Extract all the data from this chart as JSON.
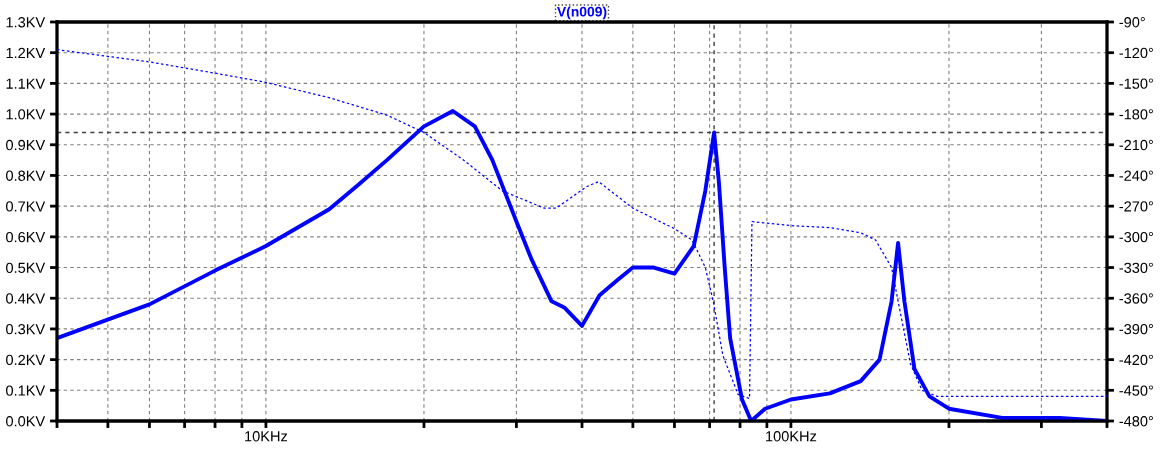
{
  "chart_data": {
    "type": "line",
    "title": "V(n009)",
    "log": "x",
    "grid": true,
    "xlim": [
      4,
      400
    ],
    "xticks": [
      {
        "value": 4,
        "label": null
      },
      {
        "value": 5,
        "label": null
      },
      {
        "value": 6,
        "label": null
      },
      {
        "value": 7,
        "label": null
      },
      {
        "value": 8,
        "label": null
      },
      {
        "value": 9,
        "label": null
      },
      {
        "value": 10,
        "label": "10KHz"
      },
      {
        "value": 20,
        "label": null
      },
      {
        "value": 30,
        "label": null
      },
      {
        "value": 40,
        "label": null
      },
      {
        "value": 50,
        "label": null
      },
      {
        "value": 60,
        "label": null
      },
      {
        "value": 70,
        "label": null
      },
      {
        "value": 80,
        "label": null
      },
      {
        "value": 90,
        "label": null
      },
      {
        "value": 100,
        "label": "100KHz"
      },
      {
        "value": 200,
        "label": null
      },
      {
        "value": 300,
        "label": null
      },
      {
        "value": 400,
        "label": null
      }
    ],
    "ylim": [
      0,
      1.3
    ],
    "yticks": [
      {
        "value": 0,
        "label": "0.0KV"
      },
      {
        "value": 0.1,
        "label": "0.1KV"
      },
      {
        "value": 0.2,
        "label": "0.2KV"
      },
      {
        "value": 0.3,
        "label": "0.3KV"
      },
      {
        "value": 0.4,
        "label": "0.4KV"
      },
      {
        "value": 0.5,
        "label": "0.5KV"
      },
      {
        "value": 0.6,
        "label": "0.6KV"
      },
      {
        "value": 0.7,
        "label": "0.7KV"
      },
      {
        "value": 0.8,
        "label": "0.8KV"
      },
      {
        "value": 0.9,
        "label": "0.9KV"
      },
      {
        "value": 1.0,
        "label": "1.0KV"
      },
      {
        "value": 1.1,
        "label": "1.1KV"
      },
      {
        "value": 1.2,
        "label": "1.2KV"
      },
      {
        "value": 1.3,
        "label": "1.3KV"
      }
    ],
    "y2lim": [
      -480,
      -90
    ],
    "y2ticks": [
      {
        "value": -90,
        "label": "-90°"
      },
      {
        "value": -120,
        "label": "-120°"
      },
      {
        "value": -150,
        "label": "-150°"
      },
      {
        "value": -180,
        "label": "-180°"
      },
      {
        "value": -210,
        "label": "-210°"
      },
      {
        "value": -240,
        "label": "-240°"
      },
      {
        "value": -270,
        "label": "-270°"
      },
      {
        "value": -300,
        "label": "-300°"
      },
      {
        "value": -330,
        "label": "-330°"
      },
      {
        "value": -360,
        "label": "-360°"
      },
      {
        "value": -390,
        "label": "-390°"
      },
      {
        "value": -420,
        "label": "-420°"
      },
      {
        "value": -450,
        "label": "-450°"
      },
      {
        "value": -480,
        "label": "-480°"
      }
    ],
    "ref_lines": [
      {
        "axis": "y",
        "value": 0.94,
        "color": "#404040",
        "line_style": "dashed"
      },
      {
        "axis": "x",
        "value": 71.4,
        "color": "#404040",
        "line_style": "dashed"
      }
    ],
    "series": [
      {
        "color": "#0000ff",
        "line_style": "solid",
        "x": [
          4,
          6,
          8,
          10,
          13.2,
          15,
          17,
          20,
          22.7,
          25,
          27,
          30,
          32,
          35,
          37,
          40,
          43.2,
          46.8,
          50,
          54.8,
          60,
          65.3,
          68.7,
          71.4,
          72.9,
          74.8,
          76.6,
          80.7,
          84,
          89.3,
          100,
          118.6,
          135.8,
          147.5,
          155.5,
          160,
          164.5,
          171.9,
          183.6,
          200,
          252.5,
          325,
          400
        ],
        "values": [
          0.27,
          0.38,
          0.49,
          0.57,
          0.69,
          0.77,
          0.85,
          0.96,
          1.01,
          0.96,
          0.85,
          0.65,
          0.53,
          0.39,
          0.37,
          0.31,
          0.41,
          0.46,
          0.5,
          0.5,
          0.48,
          0.57,
          0.75,
          0.94,
          0.78,
          0.5,
          0.27,
          0.07,
          0.0,
          0.04,
          0.07,
          0.09,
          0.13,
          0.2,
          0.39,
          0.58,
          0.39,
          0.17,
          0.08,
          0.04,
          0.01,
          0.01,
          0.0
        ]
      },
      {
        "color": "#0000ff",
        "line_style": "dotted",
        "axis": "y2",
        "x": [
          4,
          6,
          8,
          10,
          13.2,
          17,
          20,
          23.8,
          28.2,
          33.9,
          35.7,
          40.8,
          43,
          50,
          60,
          64.8,
          68.7,
          71.2,
          74.2,
          79.3,
          83.4,
          84.3,
          100,
          118.6,
          135.8,
          144.9,
          155.5,
          160.6,
          168.9,
          177.7,
          190,
          400
        ],
        "values": [
          -117,
          -129,
          -140,
          -149,
          -164,
          -181,
          -198,
          -225,
          -255,
          -272,
          -272,
          -251,
          -246,
          -272,
          -292,
          -303,
          -330,
          -364,
          -416,
          -454,
          -458,
          -285,
          -289,
          -291,
          -296,
          -303,
          -330,
          -367,
          -424,
          -450,
          -456,
          -456
        ]
      }
    ]
  }
}
